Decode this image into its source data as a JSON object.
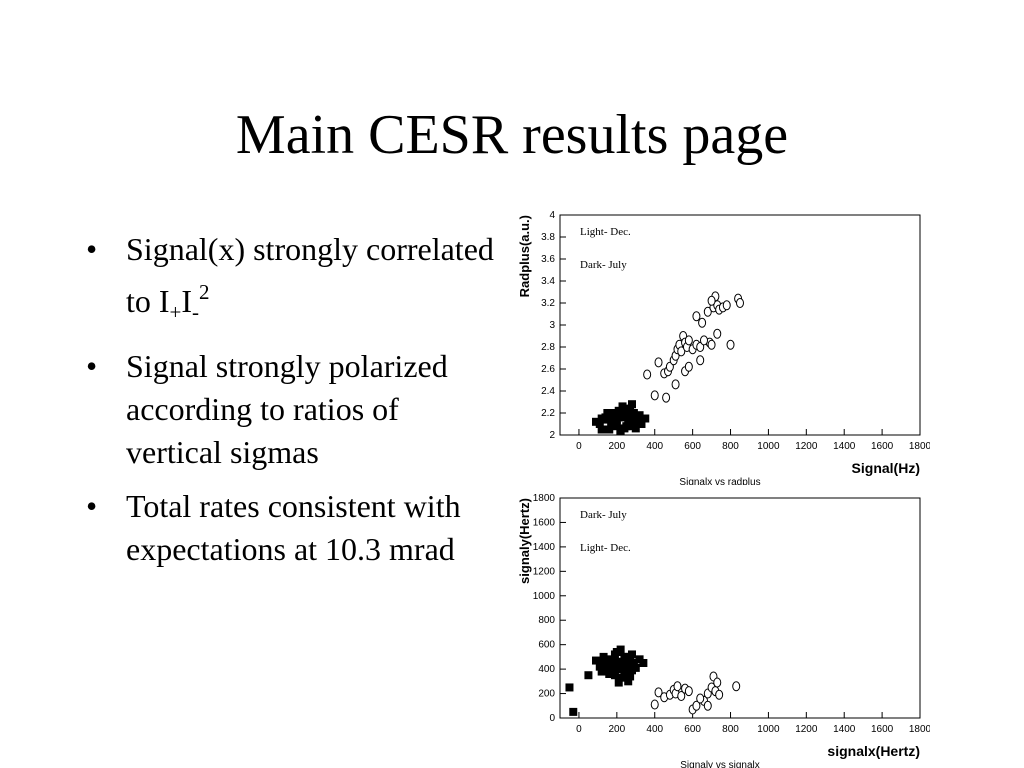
{
  "slide": {
    "title": "Main CESR results page",
    "bullets": [
      {
        "text": "Signal(x) strongly correlated to I",
        "sub1": "+",
        "mid": "I",
        "sub2": "-",
        "sup": "2"
      },
      {
        "text": "Signal strongly polarized according to ratios of vertical sigmas"
      },
      {
        "text": "Total rates consistent with expectations at 10.3 mrad"
      }
    ]
  },
  "chart_data": [
    {
      "type": "scatter",
      "title": "Signalx vs radplus",
      "xlabel": "Signal(Hz)",
      "ylabel": "Radplus(a.u.)",
      "xlim": [
        -100,
        1800
      ],
      "ylim": [
        2,
        4
      ],
      "xticks": [
        "0",
        "200",
        "400",
        "600",
        "800",
        "1000",
        "1200",
        "1400",
        "1600",
        "1800"
      ],
      "yticks": [
        "2",
        "2.2",
        "2.4",
        "2.6",
        "2.8",
        "3",
        "3.2",
        "3.4",
        "3.6",
        "3.8",
        "4"
      ],
      "grid": false,
      "legend": "top-left",
      "series": [
        {
          "name": "Light- Dec.",
          "marker": "open-circle",
          "points": [
            [
              360,
              2.55
            ],
            [
              420,
              2.66
            ],
            [
              450,
              2.56
            ],
            [
              470,
              2.58
            ],
            [
              480,
              2.62
            ],
            [
              500,
              2.68
            ],
            [
              510,
              2.72
            ],
            [
              520,
              2.78
            ],
            [
              530,
              2.82
            ],
            [
              540,
              2.76
            ],
            [
              550,
              2.9
            ],
            [
              560,
              2.84
            ],
            [
              570,
              2.8
            ],
            [
              580,
              2.86
            ],
            [
              600,
              2.78
            ],
            [
              620,
              2.82
            ],
            [
              640,
              2.8
            ],
            [
              650,
              3.02
            ],
            [
              680,
              3.12
            ],
            [
              690,
              2.84
            ],
            [
              700,
              2.82
            ],
            [
              710,
              3.16
            ],
            [
              720,
              3.26
            ],
            [
              730,
              3.18
            ],
            [
              740,
              3.14
            ],
            [
              760,
              3.16
            ],
            [
              780,
              3.18
            ],
            [
              800,
              2.82
            ],
            [
              840,
              3.24
            ],
            [
              850,
              3.2
            ],
            [
              400,
              2.36
            ],
            [
              460,
              2.34
            ],
            [
              510,
              2.46
            ],
            [
              560,
              2.58
            ],
            [
              620,
              3.08
            ],
            [
              700,
              3.22
            ],
            [
              730,
              2.92
            ],
            [
              640,
              2.68
            ],
            [
              580,
              2.62
            ],
            [
              660,
              2.86
            ]
          ]
        },
        {
          "name": "Dark- July",
          "marker": "filled-square",
          "points": [
            [
              90,
              2.12
            ],
            [
              110,
              2.1
            ],
            [
              120,
              2.15
            ],
            [
              140,
              2.16
            ],
            [
              150,
              2.14
            ],
            [
              160,
              2.05
            ],
            [
              170,
              2.18
            ],
            [
              180,
              2.2
            ],
            [
              190,
              2.12
            ],
            [
              200,
              2.14
            ],
            [
              210,
              2.22
            ],
            [
              220,
              2.18
            ],
            [
              230,
              2.2
            ],
            [
              240,
              2.16
            ],
            [
              250,
              2.24
            ],
            [
              260,
              2.18
            ],
            [
              270,
              2.22
            ],
            [
              280,
              2.28
            ],
            [
              290,
              2.2
            ],
            [
              300,
              2.16
            ],
            [
              310,
              2.12
            ],
            [
              320,
              2.18
            ],
            [
              170,
              2.12
            ],
            [
              200,
              2.08
            ],
            [
              240,
              2.06
            ],
            [
              270,
              2.08
            ],
            [
              300,
              2.06
            ],
            [
              330,
              2.1
            ],
            [
              150,
              2.2
            ],
            [
              230,
              2.26
            ],
            [
              260,
              2.14
            ],
            [
              210,
              2.16
            ],
            [
              190,
              2.2
            ],
            [
              280,
              2.12
            ],
            [
              250,
              2.08
            ],
            [
              220,
              2.04
            ],
            [
              350,
              2.15
            ],
            [
              120,
              2.05
            ]
          ]
        }
      ]
    },
    {
      "type": "scatter",
      "title": "Signaly vs signalx",
      "xlabel": "signalx(Hertz)",
      "ylabel": "signaly(Hertz)",
      "xlim": [
        -100,
        1800
      ],
      "ylim": [
        0,
        1800
      ],
      "xticks": [
        "0",
        "200",
        "400",
        "600",
        "800",
        "1000",
        "1200",
        "1400",
        "1600",
        "1800"
      ],
      "yticks": [
        "0",
        "200",
        "400",
        "600",
        "800",
        "1000",
        "1200",
        "1400",
        "1600",
        "1800"
      ],
      "grid": false,
      "legend": "top-left",
      "series": [
        {
          "name": "Dark- July",
          "marker": "filled-square",
          "points": [
            [
              -50,
              250
            ],
            [
              -30,
              50
            ],
            [
              50,
              350
            ],
            [
              90,
              470
            ],
            [
              110,
              420
            ],
            [
              120,
              380
            ],
            [
              130,
              500
            ],
            [
              140,
              440
            ],
            [
              150,
              400
            ],
            [
              160,
              360
            ],
            [
              170,
              480
            ],
            [
              180,
              430
            ],
            [
              190,
              520
            ],
            [
              200,
              460
            ],
            [
              210,
              400
            ],
            [
              220,
              560
            ],
            [
              230,
              440
            ],
            [
              240,
              380
            ],
            [
              250,
              500
            ],
            [
              260,
              420
            ],
            [
              270,
              470
            ],
            [
              280,
              390
            ],
            [
              290,
              450
            ],
            [
              300,
              410
            ],
            [
              320,
              480
            ],
            [
              190,
              350
            ],
            [
              230,
              330
            ],
            [
              260,
              300
            ],
            [
              210,
              290
            ],
            [
              270,
              340
            ],
            [
              150,
              470
            ],
            [
              200,
              540
            ],
            [
              240,
              500
            ],
            [
              180,
              400
            ],
            [
              220,
              420
            ],
            [
              340,
              450
            ],
            [
              120,
              440
            ],
            [
              280,
              520
            ],
            [
              160,
              420
            ]
          ]
        },
        {
          "name": "Light- Dec.",
          "marker": "open-circle",
          "points": [
            [
              400,
              110
            ],
            [
              420,
              210
            ],
            [
              450,
              170
            ],
            [
              480,
              190
            ],
            [
              500,
              230
            ],
            [
              510,
              200
            ],
            [
              520,
              260
            ],
            [
              540,
              180
            ],
            [
              560,
              240
            ],
            [
              580,
              220
            ],
            [
              600,
              70
            ],
            [
              620,
              100
            ],
            [
              660,
              140
            ],
            [
              680,
              200
            ],
            [
              700,
              250
            ],
            [
              710,
              340
            ],
            [
              720,
              220
            ],
            [
              730,
              290
            ],
            [
              740,
              190
            ],
            [
              830,
              260
            ],
            [
              680,
              100
            ],
            [
              640,
              160
            ]
          ]
        }
      ]
    }
  ]
}
